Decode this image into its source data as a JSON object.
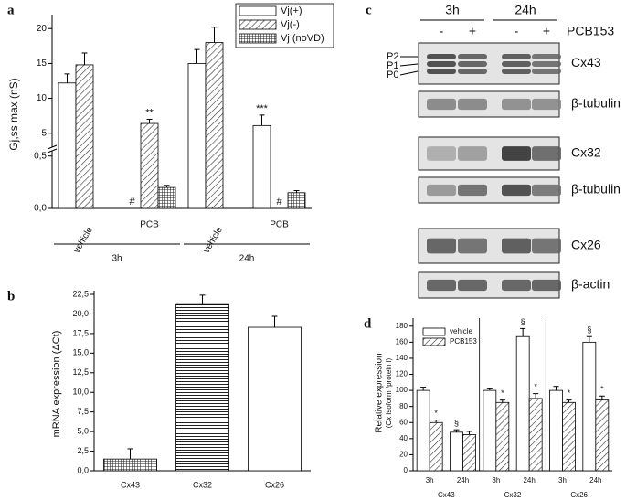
{
  "panel_labels": [
    "a",
    "b",
    "c",
    "d"
  ],
  "chart_data": [
    {
      "type": "bar",
      "y_label": "Gj,ss max (nS)",
      "groups": [
        "3h",
        "24h"
      ],
      "categories": [
        "vehicle",
        "PCB",
        "vehicle",
        "PCB"
      ],
      "series": [
        {
          "name": "Vj(+)",
          "color": "#ffffff",
          "pattern": "none",
          "values": [
            12.2,
            0,
            15,
            6.1
          ],
          "errors": [
            1.3,
            null,
            2,
            1.5
          ],
          "annotations": [
            null,
            "#",
            null,
            "***"
          ]
        },
        {
          "name": "Vj(-)",
          "color": "#ffffff",
          "pattern": "hatch",
          "values": [
            14.8,
            6.4,
            18,
            0
          ],
          "errors": [
            1.7,
            0.6,
            2.2,
            null
          ],
          "annotations": [
            null,
            "**",
            null,
            "#"
          ]
        },
        {
          "name": "Vj (noVD)",
          "color": "#ffffff",
          "pattern": "grid",
          "values": [
            0,
            0.2,
            0,
            0.15
          ],
          "errors": [
            null,
            0.02,
            null,
            0.02
          ],
          "annotations": [
            null,
            null,
            null,
            null
          ]
        }
      ],
      "ylim": [
        0,
        22
      ],
      "ybreak": [
        0.55,
        3
      ],
      "yticks": [
        {
          "value": 0,
          "label": "0,0"
        },
        {
          "value": 0.5,
          "label": "0,5"
        },
        5,
        10,
        15,
        20
      ]
    },
    {
      "type": "bar",
      "y_label": "mRNA expression (ΔCt)",
      "categories": [
        "Cx43",
        "Cx32",
        "Cx26"
      ],
      "values": [
        1.5,
        21.2,
        18.3
      ],
      "errors": [
        1.3,
        1.2,
        1.4
      ],
      "color": "#ffffff",
      "patterns": [
        "grid",
        "hlines",
        "none"
      ],
      "ylim": [
        0,
        22.5
      ],
      "yticks": [
        {
          "value": 0,
          "label": "0,0"
        },
        {
          "value": 2.5,
          "label": "2,5"
        },
        {
          "value": 5,
          "label": "5,0"
        },
        {
          "value": 7.5,
          "label": "7,5"
        },
        {
          "value": 10,
          "label": "10,0"
        },
        {
          "value": 12.5,
          "label": "12,5"
        },
        {
          "value": 15,
          "label": "15,0"
        },
        {
          "value": 17.5,
          "label": "17,5"
        },
        {
          "value": 20,
          "label": "20,0"
        },
        {
          "value": 22.5,
          "label": "22,5"
        }
      ]
    },
    {
      "type": "bar",
      "y_label": "Relative expression",
      "y_sublabel": "(Cx isoform /protein i)",
      "groups": [
        "Cx43",
        "Cx32",
        "Cx26"
      ],
      "categories": [
        "3h",
        "24h",
        "3h",
        "24h",
        "3h",
        "24h"
      ],
      "series": [
        {
          "name": "vehicle",
          "color": "#ffffff",
          "pattern": "none",
          "values": [
            100,
            48,
            100,
            167,
            100,
            160
          ],
          "errors": [
            4,
            3,
            2,
            10,
            5,
            7
          ],
          "annotations": [
            null,
            "§",
            null,
            "§",
            null,
            "§"
          ]
        },
        {
          "name": "PCB153",
          "color": "#ffffff",
          "pattern": "hatch",
          "values": [
            60,
            45,
            85,
            90,
            85,
            88
          ],
          "errors": [
            3,
            4,
            3,
            6,
            3,
            5
          ],
          "annotations": [
            "*",
            null,
            "*",
            "*",
            "*",
            "*"
          ]
        }
      ],
      "ylim": [
        0,
        190
      ],
      "yticks": [
        0,
        20,
        40,
        60,
        80,
        100,
        120,
        140,
        160,
        180
      ]
    }
  ],
  "blot": {
    "times": [
      "3h",
      "24h"
    ],
    "lanes": [
      "-",
      "+",
      "-",
      "+"
    ],
    "treatment": "PCB153",
    "rows": [
      "Cx43",
      "β-tubulin",
      "Cx32",
      "β-tubulin",
      "Cx26",
      "β-actin"
    ],
    "isoforms": [
      "P2",
      "P1",
      "P0"
    ]
  }
}
